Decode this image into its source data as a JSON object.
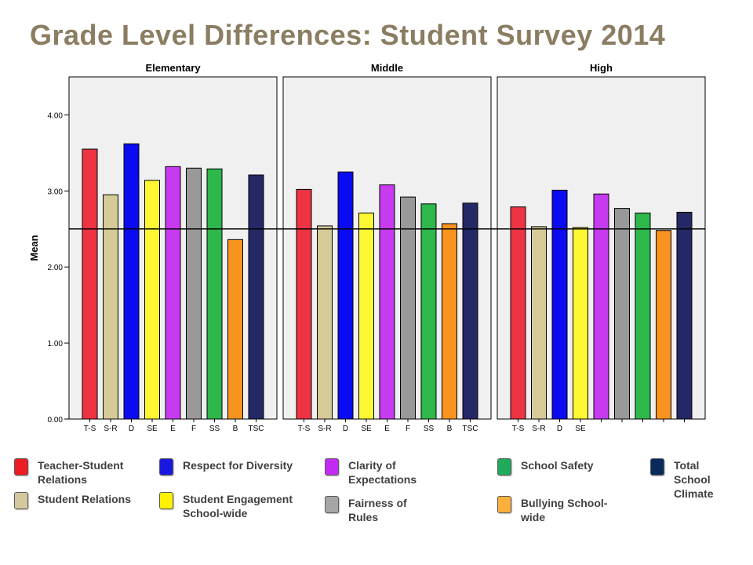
{
  "title": "Grade Level Differences: Student Survey 2014",
  "chart_data": {
    "type": "bar",
    "ylabel": "Mean",
    "ylim": [
      0,
      4.5
    ],
    "yticks": [
      "0.00",
      "1.00",
      "2.00",
      "3.00",
      "4.00"
    ],
    "reference_line": 2.5,
    "panels": [
      {
        "name": "Elementary",
        "categories": [
          "T-S",
          "S-R",
          "D",
          "SE",
          "E",
          "F",
          "SS",
          "B",
          "TSC"
        ],
        "values": [
          3.55,
          2.95,
          3.62,
          3.14,
          3.32,
          3.3,
          3.29,
          2.36,
          3.21
        ]
      },
      {
        "name": "Middle",
        "categories": [
          "T-S",
          "S-R",
          "D",
          "SE",
          "E",
          "F",
          "SS",
          "B",
          "TSC"
        ],
        "values": [
          3.02,
          2.54,
          3.25,
          2.71,
          3.08,
          2.92,
          2.83,
          2.57,
          2.84
        ]
      },
      {
        "name": "High",
        "categories": [
          "T-S",
          "S-R",
          "D",
          "SE",
          "",
          "",
          "",
          "",
          ""
        ],
        "values": [
          2.79,
          2.53,
          3.01,
          2.52,
          2.96,
          2.77,
          2.71,
          2.48,
          2.72
        ]
      }
    ],
    "colors": [
      "#ee3342",
      "#d6cb98",
      "#0b0bf2",
      "#fdf734",
      "#c73bf0",
      "#999999",
      "#2eb74b",
      "#f7931e",
      "#242866"
    ],
    "grid": false
  },
  "legend": [
    {
      "label": "Teacher-Student Relations",
      "color": "#ee1c25"
    },
    {
      "label": "Respect for Diversity",
      "color": "#1a18e0"
    },
    {
      "label": "Clarity of Expectations",
      "color": "#c22cf2"
    },
    {
      "label": "School Safety",
      "color": "#1faa5c"
    },
    {
      "label": "Total School Climate",
      "color": "#0a2a5c"
    },
    {
      "label": "Student Relations",
      "color": "#d6c89e"
    },
    {
      "label": "Student Engagement School-wide",
      "color": "#fff200"
    },
    {
      "label": "Fairness of Rules",
      "color": "#a6a6a6"
    },
    {
      "label": "Bullying School-wide",
      "color": "#fbaf3c"
    }
  ]
}
